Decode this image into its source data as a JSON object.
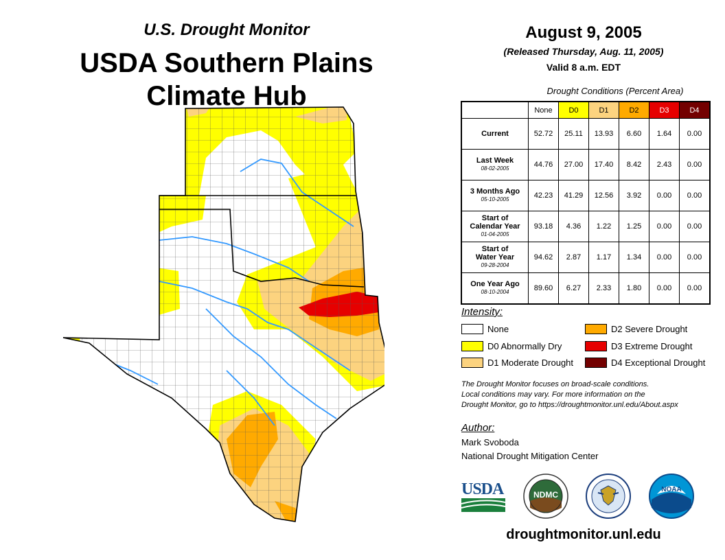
{
  "header": {
    "subtitle": "U.S. Drought Monitor",
    "title_line1": "USDA Southern Plains",
    "title_line2": "Climate Hub",
    "date": "August 9, 2005",
    "released": "(Released Thursday, Aug. 11, 2005)",
    "valid": "Valid 8 a.m. EDT"
  },
  "table": {
    "caption": "Drought Conditions (Percent Area)",
    "columns": [
      "None",
      "D0",
      "D1",
      "D2",
      "D3",
      "D4"
    ],
    "column_colors": [
      "#ffffff",
      "#ffff00",
      "#fcd37f",
      "#ffaa00",
      "#e60000",
      "#730000"
    ],
    "rows": [
      {
        "label": "Current",
        "label2": "",
        "date": "",
        "values": [
          "52.72",
          "25.11",
          "13.93",
          "6.60",
          "1.64",
          "0.00"
        ]
      },
      {
        "label": "Last Week",
        "label2": "",
        "date": "08-02-2005",
        "values": [
          "44.76",
          "27.00",
          "17.40",
          "8.42",
          "2.43",
          "0.00"
        ]
      },
      {
        "label": "3 Months Ago",
        "label2": "",
        "date": "05-10-2005",
        "values": [
          "42.23",
          "41.29",
          "12.56",
          "3.92",
          "0.00",
          "0.00"
        ]
      },
      {
        "label": "Start of",
        "label2": "Calendar Year",
        "date": "01-04-2005",
        "values": [
          "93.18",
          "4.36",
          "1.22",
          "1.25",
          "0.00",
          "0.00"
        ]
      },
      {
        "label": "Start of",
        "label2": "Water Year",
        "date": "09-28-2004",
        "values": [
          "94.62",
          "2.87",
          "1.17",
          "1.34",
          "0.00",
          "0.00"
        ]
      },
      {
        "label": "One Year Ago",
        "label2": "",
        "date": "08-10-2004",
        "values": [
          "89.60",
          "6.27",
          "2.33",
          "1.80",
          "0.00",
          "0.00"
        ]
      }
    ]
  },
  "legend": {
    "title": "Intensity:",
    "items": [
      {
        "label": "None",
        "color": "#ffffff"
      },
      {
        "label": "D0 Abnormally Dry",
        "color": "#ffff00"
      },
      {
        "label": "D1 Moderate Drought",
        "color": "#fcd37f"
      },
      {
        "label": "D2 Severe Drought",
        "color": "#ffaa00"
      },
      {
        "label": "D3 Extreme Drought",
        "color": "#e60000"
      },
      {
        "label": "D4 Exceptional Drought",
        "color": "#730000"
      }
    ]
  },
  "note": {
    "line1": "The Drought Monitor focuses on broad-scale conditions.",
    "line2": "Local conditions may vary. For more information on the",
    "line3": "Drought Monitor, go to https://droughtmonitor.unl.edu/About.aspx"
  },
  "author": {
    "title": "Author:",
    "name": "Mark Svoboda",
    "org": "National Drought Mitigation Center"
  },
  "logos": {
    "usda": "USDA",
    "ndmc": "NDMC",
    "noaa": "NOAA"
  },
  "footer_url": "droughtmonitor.unl.edu",
  "colors": {
    "river": "#3399ff",
    "county_line": "#555555"
  }
}
